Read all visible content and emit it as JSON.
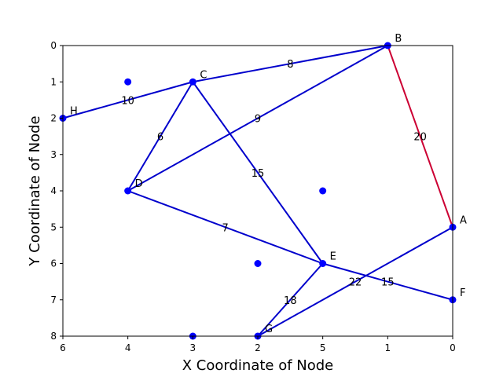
{
  "chart_data": {
    "type": "scatter",
    "xlabel": "X Coordinate of Node",
    "ylabel": "Y Coordinate of Node",
    "x_ticks": [
      "6",
      "4",
      "3",
      "2",
      "5",
      "1",
      "0"
    ],
    "y_ticks": [
      "0",
      "1",
      "2",
      "3",
      "4",
      "5",
      "6",
      "7",
      "8"
    ],
    "grid": false,
    "colors": {
      "node": "#0000ff",
      "edge": "#0000cc",
      "highlight": "#cc0033"
    },
    "nodes": [
      {
        "label": "A",
        "x": 0,
        "y": 5
      },
      {
        "label": "B",
        "x": 1,
        "y": 0
      },
      {
        "label": "C",
        "x": 4,
        "y": 1
      },
      {
        "label": "D",
        "x": 5,
        "y": 4
      },
      {
        "label": "E",
        "x": 2,
        "y": 6
      },
      {
        "label": "F",
        "x": 0,
        "y": 7
      },
      {
        "label": "G",
        "x": 3,
        "y": 8
      },
      {
        "label": "H",
        "x": 6,
        "y": 2
      }
    ],
    "extra_points": [
      {
        "x": 5,
        "y": 1
      },
      {
        "x": 2,
        "y": 4
      },
      {
        "x": 3,
        "y": 6
      },
      {
        "x": 4,
        "y": 8
      }
    ],
    "edges": [
      {
        "from": "C",
        "to": "B",
        "weight": "8"
      },
      {
        "from": "H",
        "to": "C",
        "weight": "10"
      },
      {
        "from": "C",
        "to": "D",
        "weight": "6"
      },
      {
        "from": "C",
        "to": "E",
        "weight": "15"
      },
      {
        "from": "D",
        "to": "B",
        "weight": "9"
      },
      {
        "from": "B",
        "to": "A",
        "weight": "20",
        "highlight": true
      },
      {
        "from": "E",
        "to": "D",
        "weight": "7"
      },
      {
        "from": "G",
        "to": "E",
        "weight": "18"
      },
      {
        "from": "E",
        "to": "F",
        "weight": "15"
      },
      {
        "from": "G",
        "to": "A",
        "weight": "22"
      }
    ]
  }
}
